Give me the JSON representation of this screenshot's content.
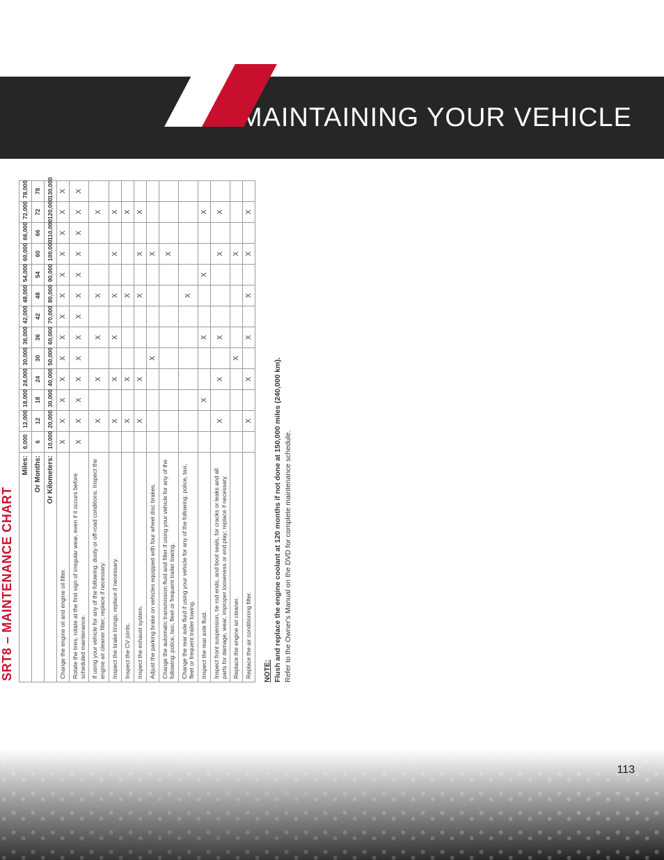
{
  "header": {
    "title": "MAINTAINING YOUR VEHICLE",
    "page_number": "113"
  },
  "chart": {
    "title": "SRT8 – MAINTENANCE CHART",
    "header_rows": {
      "miles_label": "Miles:",
      "months_label": "Or Months:",
      "km_label": "Or Kilometers:"
    },
    "columns": [
      {
        "miles": "6,000",
        "months": "6",
        "km": "10,000"
      },
      {
        "miles": "12,000",
        "months": "12",
        "km": "20,000"
      },
      {
        "miles": "18,000",
        "months": "18",
        "km": "30,000"
      },
      {
        "miles": "24,000",
        "months": "24",
        "km": "40,000"
      },
      {
        "miles": "30,000",
        "months": "30",
        "km": "50,000"
      },
      {
        "miles": "36,000",
        "months": "36",
        "km": "60,000"
      },
      {
        "miles": "42,000",
        "months": "42",
        "km": "70,000"
      },
      {
        "miles": "48,000",
        "months": "48",
        "km": "80,000"
      },
      {
        "miles": "54,000",
        "months": "54",
        "km": "90,000"
      },
      {
        "miles": "60,000",
        "months": "60",
        "km": "100,000"
      },
      {
        "miles": "66,000",
        "months": "66",
        "km": "110,000"
      },
      {
        "miles": "72,000",
        "months": "72",
        "km": "120,000"
      },
      {
        "miles": "78,000",
        "months": "78",
        "km": "130,000"
      }
    ],
    "tasks": [
      {
        "desc": "Change the engine oil and engine oil filter.",
        "marks": [
          1,
          1,
          1,
          1,
          1,
          1,
          1,
          1,
          1,
          1,
          1,
          1,
          1
        ]
      },
      {
        "desc": "Rotate the tires, rotate at the first sign of irregular wear, even if it occurs before scheduled maintenance.",
        "marks": [
          1,
          1,
          1,
          1,
          1,
          1,
          1,
          1,
          1,
          1,
          1,
          1,
          1
        ]
      },
      {
        "desc": "If using your vehicle for any of the following: dusty or off-road conditions. Inspect the engine air cleaner filter; replace if necessary.",
        "marks": [
          0,
          1,
          0,
          1,
          0,
          1,
          0,
          1,
          0,
          0,
          0,
          1,
          0
        ]
      },
      {
        "desc": "Inspect the brake linings; replace if necessary.",
        "marks": [
          0,
          1,
          0,
          1,
          0,
          1,
          0,
          1,
          0,
          1,
          0,
          1,
          0
        ]
      },
      {
        "desc": "Inspect the CV joints.",
        "marks": [
          0,
          1,
          0,
          1,
          0,
          0,
          0,
          1,
          0,
          0,
          0,
          1,
          0
        ]
      },
      {
        "desc": "Inspect the exhaust system.",
        "marks": [
          0,
          1,
          0,
          1,
          0,
          0,
          0,
          1,
          0,
          1,
          0,
          1,
          0
        ]
      },
      {
        "desc": "Adjust the parking brake on vehicles equipped with four wheel disc brakes.",
        "marks": [
          0,
          0,
          0,
          0,
          1,
          0,
          0,
          0,
          0,
          1,
          0,
          0,
          0
        ]
      },
      {
        "desc": "Change the automatic transmission fluid and filter if using your vehicle for any of the following: police, taxi, fleet or frequent trailer towing.",
        "marks": [
          0,
          0,
          0,
          0,
          0,
          0,
          0,
          0,
          0,
          1,
          0,
          0,
          0
        ]
      },
      {
        "desc": "Change the rear axle fluid if using your vehicle for any of the following: police, taxi, fleet or frequent trailer towing.",
        "marks": [
          0,
          0,
          0,
          0,
          0,
          0,
          0,
          1,
          0,
          0,
          0,
          0,
          0
        ]
      },
      {
        "desc": "Inspect the rear axle fluid.",
        "marks": [
          0,
          0,
          1,
          0,
          0,
          1,
          0,
          0,
          1,
          0,
          0,
          1,
          0
        ]
      },
      {
        "desc": "Inspect front suspension, tie rod ends, and boot seals, for cracks or leaks and all parts for damage, wear, improper looseness or end play; replace if necessary.",
        "marks": [
          0,
          1,
          0,
          1,
          0,
          1,
          0,
          0,
          0,
          1,
          0,
          1,
          0
        ]
      },
      {
        "desc": "Replace the engine air cleaner.",
        "marks": [
          0,
          0,
          0,
          0,
          1,
          0,
          0,
          0,
          0,
          1,
          0,
          0,
          0
        ]
      },
      {
        "desc": "Replace the air conditioning filter.",
        "marks": [
          0,
          1,
          0,
          1,
          0,
          1,
          0,
          1,
          0,
          1,
          0,
          1,
          0
        ]
      }
    ]
  },
  "note": {
    "label": "NOTE:",
    "bold_line": "Flush and replace the engine coolant at 120 months if not done at 150,000 miles (240,000 km).",
    "body": "Refer to the Owner's Manual on the DVD for complete maintenance schedule."
  },
  "styling": {
    "accent_color": "#c8102e",
    "header_bg": "#262626",
    "border_color": "#9a9a9a",
    "text_color": "#333333",
    "mark": "X"
  }
}
